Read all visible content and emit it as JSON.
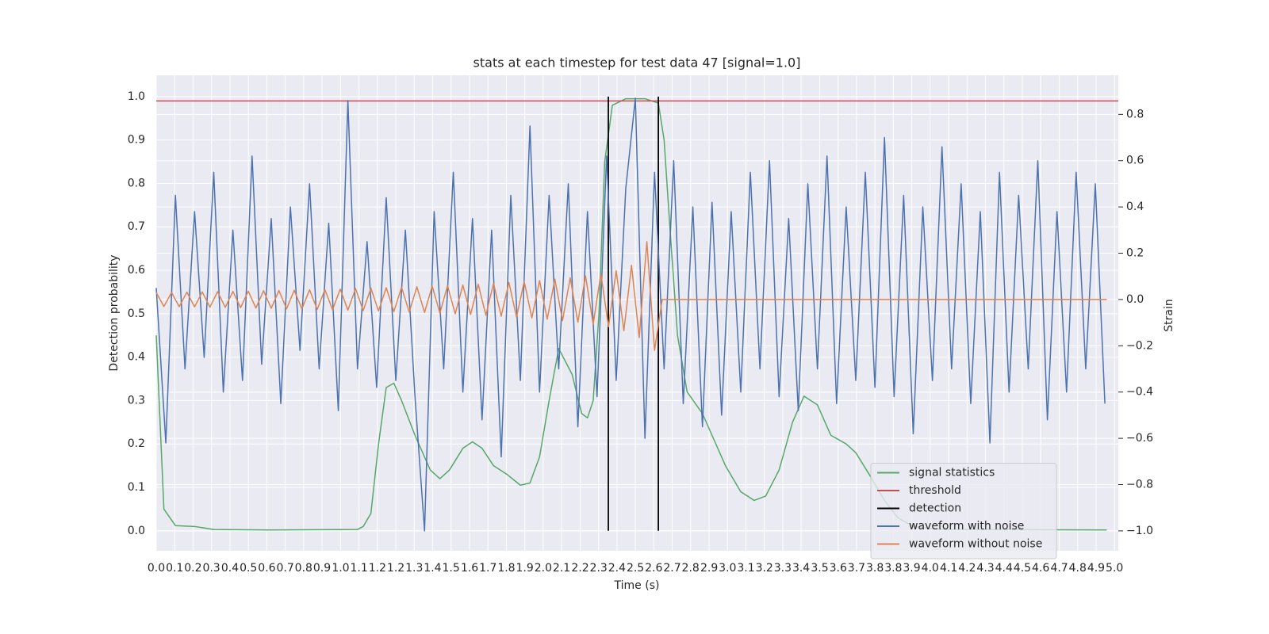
{
  "chart_data": {
    "type": "line",
    "title": "stats at each timestep for test data 47 [signal=1.0]",
    "x_label": "Time (s)",
    "y_label": "Detection probability",
    "y2_label": "Strain",
    "xlim": [
      0,
      5.02
    ],
    "ylim": [
      -0.046,
      1.049
    ],
    "y2lim": [
      -1.086,
      0.969
    ],
    "grid": true,
    "legend": "lower right",
    "xticks": [
      {
        "value": 0,
        "label": "0.0"
      },
      {
        "value": 0.096,
        "label": "0.1"
      },
      {
        "value": 0.192,
        "label": "0.2"
      },
      {
        "value": 0.288,
        "label": "0.3"
      },
      {
        "value": 0.385,
        "label": "0.4"
      },
      {
        "value": 0.481,
        "label": "0.5"
      },
      {
        "value": 0.577,
        "label": "0.6"
      },
      {
        "value": 0.673,
        "label": "0.7"
      },
      {
        "value": 0.769,
        "label": "0.8"
      },
      {
        "value": 0.865,
        "label": "0.9"
      },
      {
        "value": 0.962,
        "label": "1.0"
      },
      {
        "value": 1.058,
        "label": "1.1"
      },
      {
        "value": 1.154,
        "label": "1.2"
      },
      {
        "value": 1.25,
        "label": "1.2"
      },
      {
        "value": 1.346,
        "label": "1.3"
      },
      {
        "value": 1.442,
        "label": "1.4"
      },
      {
        "value": 1.538,
        "label": "1.5"
      },
      {
        "value": 1.635,
        "label": "1.6"
      },
      {
        "value": 1.731,
        "label": "1.7"
      },
      {
        "value": 1.827,
        "label": "1.8"
      },
      {
        "value": 1.923,
        "label": "1.9"
      },
      {
        "value": 2.019,
        "label": "2.0"
      },
      {
        "value": 2.115,
        "label": "2.1"
      },
      {
        "value": 2.212,
        "label": "2.2"
      },
      {
        "value": 2.308,
        "label": "2.3"
      },
      {
        "value": 2.404,
        "label": "2.4"
      },
      {
        "value": 2.5,
        "label": "2.5"
      },
      {
        "value": 2.596,
        "label": "2.6"
      },
      {
        "value": 2.692,
        "label": "2.7"
      },
      {
        "value": 2.788,
        "label": "2.8"
      },
      {
        "value": 2.885,
        "label": "2.9"
      },
      {
        "value": 2.981,
        "label": "3.0"
      },
      {
        "value": 3.077,
        "label": "3.1"
      },
      {
        "value": 3.173,
        "label": "3.2"
      },
      {
        "value": 3.269,
        "label": "3.3"
      },
      {
        "value": 3.365,
        "label": "3.4"
      },
      {
        "value": 3.462,
        "label": "3.5"
      },
      {
        "value": 3.558,
        "label": "3.6"
      },
      {
        "value": 3.654,
        "label": "3.7"
      },
      {
        "value": 3.75,
        "label": "3.8"
      },
      {
        "value": 3.846,
        "label": "3.8"
      },
      {
        "value": 3.942,
        "label": "3.9"
      },
      {
        "value": 4.038,
        "label": "4.0"
      },
      {
        "value": 4.135,
        "label": "4.1"
      },
      {
        "value": 4.231,
        "label": "4.2"
      },
      {
        "value": 4.327,
        "label": "4.3"
      },
      {
        "value": 4.423,
        "label": "4.4"
      },
      {
        "value": 4.519,
        "label": "4.5"
      },
      {
        "value": 4.615,
        "label": "4.6"
      },
      {
        "value": 4.712,
        "label": "4.7"
      },
      {
        "value": 4.808,
        "label": "4.8"
      },
      {
        "value": 4.904,
        "label": "4.9"
      },
      {
        "value": 5.0,
        "label": "5.0"
      }
    ],
    "yticks": [
      {
        "value": 0,
        "label": "0.0"
      },
      {
        "value": 0.1,
        "label": "0.1"
      },
      {
        "value": 0.2,
        "label": "0.2"
      },
      {
        "value": 0.3,
        "label": "0.3"
      },
      {
        "value": 0.4,
        "label": "0.4"
      },
      {
        "value": 0.5,
        "label": "0.5"
      },
      {
        "value": 0.6,
        "label": "0.6"
      },
      {
        "value": 0.7,
        "label": "0.7"
      },
      {
        "value": 0.8,
        "label": "0.8"
      },
      {
        "value": 0.9,
        "label": "0.9"
      },
      {
        "value": 1.0,
        "label": "1.0"
      }
    ],
    "y2ticks": [
      {
        "value": -1.0,
        "label": "−1.0"
      },
      {
        "value": -0.8,
        "label": "−0.8"
      },
      {
        "value": -0.6,
        "label": "−0.6"
      },
      {
        "value": -0.4,
        "label": "−0.4"
      },
      {
        "value": -0.2,
        "label": "−0.2"
      },
      {
        "value": 0,
        "label": "0.0"
      },
      {
        "value": 0.2,
        "label": "0.2"
      },
      {
        "value": 0.4,
        "label": "0.4"
      },
      {
        "value": 0.6,
        "label": "0.6"
      },
      {
        "value": 0.8,
        "label": "0.8"
      }
    ],
    "series": [
      {
        "name": "signal statistics",
        "color": "#55a868",
        "style": "line",
        "x": [
          0,
          0.04,
          0.1,
          0.2,
          0.3,
          0.6,
          1.05,
          1.08,
          1.12,
          1.16,
          1.2,
          1.24,
          1.28,
          1.35,
          1.43,
          1.48,
          1.53,
          1.6,
          1.65,
          1.7,
          1.76,
          1.83,
          1.9,
          1.95,
          2.0,
          2.05,
          2.1,
          2.17,
          2.22,
          2.25,
          2.28,
          2.31,
          2.34,
          2.38,
          2.45,
          2.55,
          2.62,
          2.65,
          2.68,
          2.72,
          2.77,
          2.85,
          2.9,
          2.97,
          3.05,
          3.12,
          3.18,
          3.25,
          3.32,
          3.38,
          3.45,
          3.52,
          3.6,
          3.65,
          3.72,
          3.8,
          3.87,
          3.95,
          4.1,
          4.96
        ],
        "values": [
          0.45,
          0.05,
          0.012,
          0.01,
          0.003,
          0.002,
          0.003,
          0.01,
          0.04,
          0.2,
          0.33,
          0.34,
          0.3,
          0.22,
          0.14,
          0.12,
          0.14,
          0.19,
          0.205,
          0.19,
          0.15,
          0.13,
          0.105,
          0.11,
          0.17,
          0.3,
          0.42,
          0.36,
          0.27,
          0.26,
          0.3,
          0.5,
          0.85,
          0.98,
          0.995,
          0.995,
          0.985,
          0.9,
          0.7,
          0.45,
          0.32,
          0.27,
          0.22,
          0.15,
          0.09,
          0.07,
          0.08,
          0.14,
          0.25,
          0.31,
          0.29,
          0.22,
          0.2,
          0.18,
          0.13,
          0.07,
          0.03,
          0.01,
          0.003,
          0.002
        ]
      },
      {
        "name": "threshold",
        "color": "#c44e52",
        "style": "hline",
        "y": 0.99
      },
      {
        "name": "detection",
        "color": "#000000",
        "style": "stem",
        "x": [
          2.359,
          2.62
        ],
        "values": [
          1.0,
          1.0
        ]
      },
      {
        "name": "waveform with noise",
        "color": "#4c72b0",
        "style": "line",
        "axis": "y2",
        "x": [
          0,
          0.05,
          0.1,
          0.15,
          0.2,
          0.25,
          0.3,
          0.35,
          0.4,
          0.45,
          0.5,
          0.55,
          0.6,
          0.65,
          0.7,
          0.75,
          0.8,
          0.85,
          0.9,
          0.95,
          1.0,
          1.05,
          1.1,
          1.15,
          1.2,
          1.25,
          1.3,
          1.35,
          1.4,
          1.45,
          1.5,
          1.55,
          1.6,
          1.65,
          1.7,
          1.75,
          1.8,
          1.85,
          1.9,
          1.95,
          2.0,
          2.05,
          2.1,
          2.15,
          2.2,
          2.25,
          2.3,
          2.35,
          2.4,
          2.45,
          2.5,
          2.55,
          2.6,
          2.65,
          2.7,
          2.75,
          2.8,
          2.85,
          2.9,
          2.95,
          3.0,
          3.05,
          3.1,
          3.15,
          3.2,
          3.25,
          3.3,
          3.35,
          3.4,
          3.45,
          3.5,
          3.55,
          3.6,
          3.65,
          3.7,
          3.75,
          3.8,
          3.85,
          3.9,
          3.95,
          4.0,
          4.05,
          4.1,
          4.15,
          4.2,
          4.25,
          4.3,
          4.35,
          4.4,
          4.45,
          4.5,
          4.55,
          4.6,
          4.65,
          4.7,
          4.75,
          4.8,
          4.85,
          4.9,
          4.95
        ],
        "values": [
          0.05,
          -0.62,
          0.45,
          -0.3,
          0.38,
          -0.25,
          0.55,
          -0.4,
          0.3,
          -0.35,
          0.62,
          -0.28,
          0.35,
          -0.45,
          0.4,
          -0.22,
          0.5,
          -0.3,
          0.33,
          -0.48,
          0.86,
          -0.3,
          0.25,
          -0.38,
          0.44,
          -0.35,
          0.3,
          -0.42,
          -1.0,
          0.38,
          -0.3,
          0.55,
          -0.4,
          0.35,
          -0.52,
          0.3,
          -0.68,
          0.45,
          -0.35,
          0.75,
          -0.4,
          0.45,
          -0.3,
          0.5,
          -0.55,
          0.38,
          -0.42,
          0.62,
          -0.35,
          0.48,
          0.87,
          -0.6,
          0.55,
          -0.3,
          0.6,
          -0.45,
          0.4,
          -0.55,
          0.42,
          -0.5,
          0.38,
          -0.4,
          0.55,
          -0.3,
          0.6,
          -0.42,
          0.35,
          -0.48,
          0.5,
          -0.3,
          0.62,
          -0.45,
          0.4,
          -0.35,
          0.55,
          -0.38,
          0.7,
          -0.42,
          0.45,
          -0.58,
          0.4,
          -0.35,
          0.66,
          -0.3,
          0.5,
          -0.45,
          0.38,
          -0.62,
          0.55,
          -0.4,
          0.45,
          -0.3,
          0.6,
          -0.52,
          0.38,
          -0.4,
          0.55,
          -0.3,
          0.5,
          -0.45
        ]
      },
      {
        "name": "waveform without noise",
        "color": "#dd8452",
        "style": "line",
        "axis": "y2",
        "x": [
          0,
          0.04,
          0.08,
          0.12,
          0.16,
          0.2,
          0.24,
          0.28,
          0.32,
          0.36,
          0.4,
          0.44,
          0.48,
          0.52,
          0.56,
          0.6,
          0.64,
          0.68,
          0.72,
          0.76,
          0.8,
          0.84,
          0.88,
          0.92,
          0.96,
          1.0,
          1.04,
          1.08,
          1.12,
          1.16,
          1.2,
          1.24,
          1.28,
          1.32,
          1.36,
          1.4,
          1.44,
          1.48,
          1.52,
          1.56,
          1.6,
          1.64,
          1.68,
          1.72,
          1.76,
          1.8,
          1.84,
          1.88,
          1.92,
          1.96,
          2.0,
          2.04,
          2.08,
          2.12,
          2.16,
          2.2,
          2.24,
          2.28,
          2.32,
          2.36,
          2.4,
          2.44,
          2.48,
          2.52,
          2.56,
          2.6,
          2.64,
          4.96
        ],
        "values": [
          0.03,
          -0.03,
          0.03,
          -0.031,
          0.032,
          -0.032,
          0.033,
          -0.033,
          0.034,
          -0.034,
          0.035,
          -0.035,
          0.036,
          -0.037,
          0.038,
          -0.038,
          0.039,
          -0.04,
          0.04,
          -0.041,
          0.042,
          -0.043,
          0.043,
          -0.044,
          0.045,
          -0.046,
          0.047,
          -0.048,
          0.049,
          -0.05,
          0.051,
          -0.052,
          0.053,
          -0.054,
          0.055,
          -0.056,
          0.058,
          -0.059,
          0.06,
          -0.062,
          0.063,
          -0.065,
          0.066,
          -0.068,
          0.07,
          -0.072,
          0.074,
          -0.076,
          0.078,
          -0.08,
          0.082,
          -0.085,
          0.088,
          -0.091,
          0.094,
          -0.098,
          0.102,
          -0.107,
          0.112,
          -0.118,
          0.125,
          -0.135,
          0.148,
          -0.165,
          0.25,
          -0.22,
          0,
          0
        ]
      }
    ]
  }
}
